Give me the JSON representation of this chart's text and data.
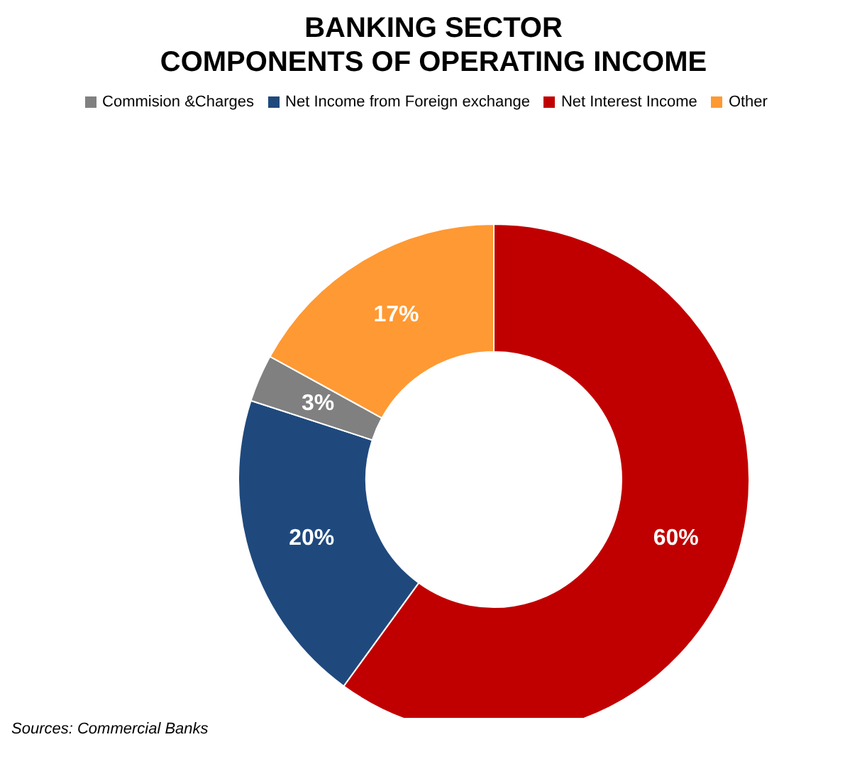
{
  "chart_data": {
    "type": "donut",
    "title": "BANKING SECTOR\nCOMPONENTS OF OPERATING INCOME",
    "categories": [
      "Net Interest Income",
      "Net Income from Foreign exchange",
      "Commision &Charges",
      "Other"
    ],
    "values": [
      60,
      20,
      3,
      17
    ],
    "colors": [
      "#c00000",
      "#1f497d",
      "#808080",
      "#ff9933"
    ],
    "value_labels": [
      "60%",
      "20%",
      "3%",
      "17%"
    ],
    "legend": "top",
    "annotations": [
      "Sources: Commercial Banks"
    ]
  }
}
